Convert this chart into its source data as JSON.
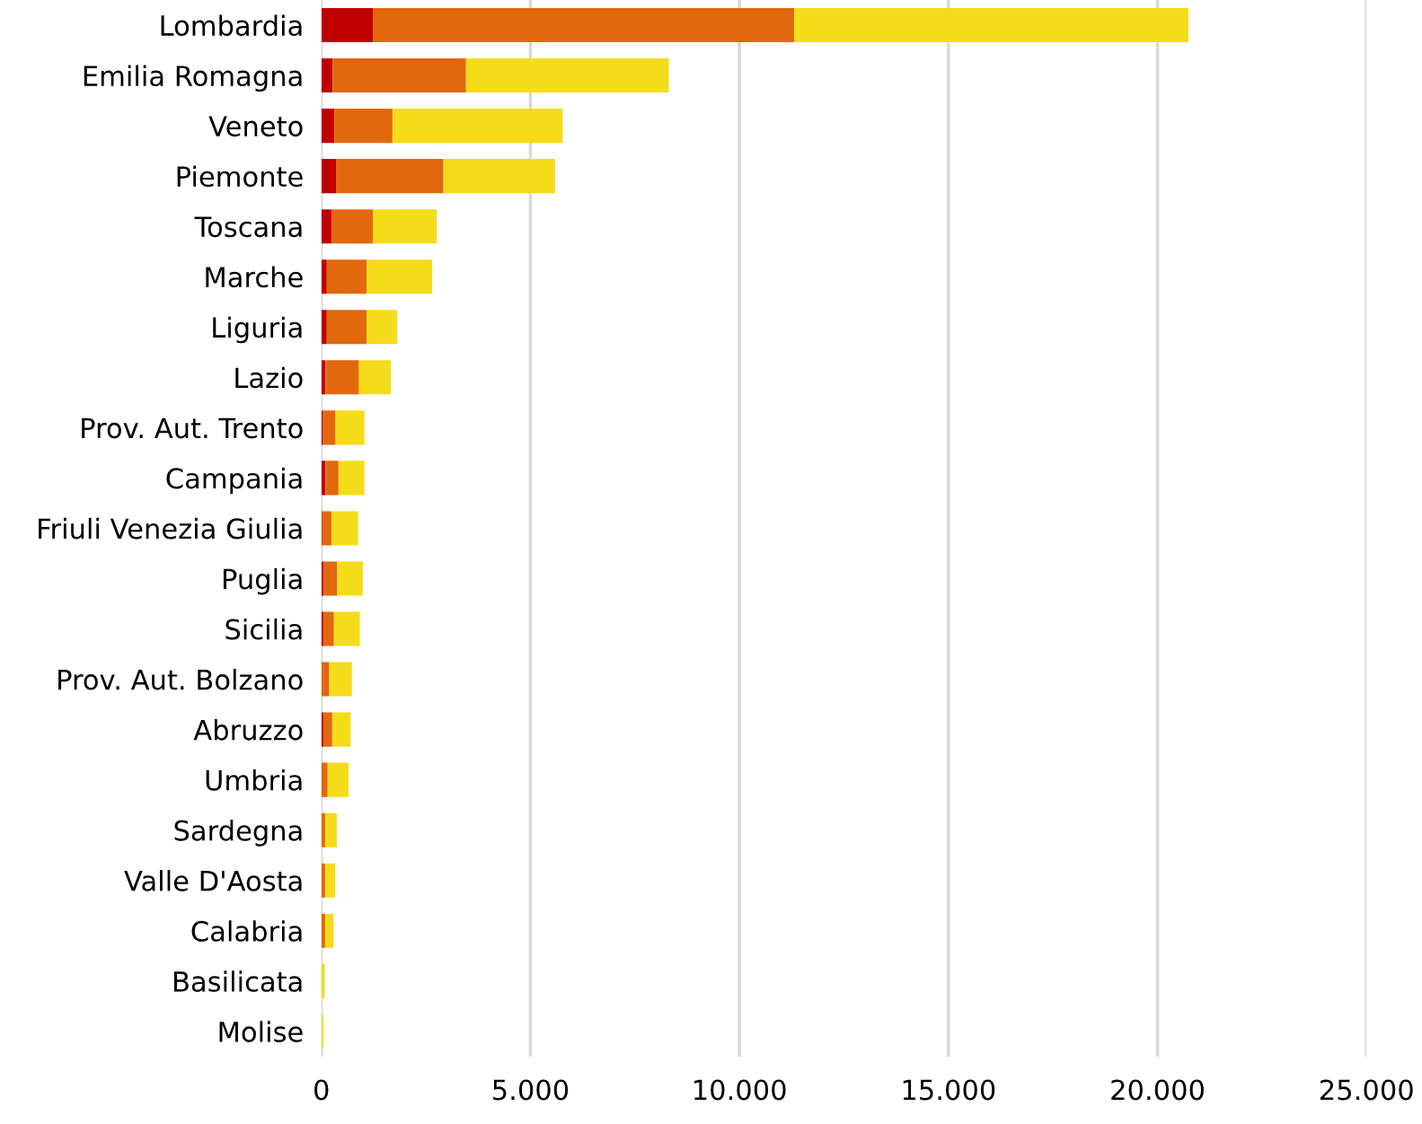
{
  "chart_data": {
    "type": "bar",
    "orientation": "horizontal",
    "stacked": true,
    "categories": [
      "Lombardia",
      "Emilia Romagna",
      "Veneto",
      "Piemonte",
      "Toscana",
      "Marche",
      "Liguria",
      "Lazio",
      "Prov. Aut. Trento",
      "Campania",
      "Friuli Venezia Giulia",
      "Puglia",
      "Sicilia",
      "Prov. Aut. Bolzano",
      "Abruzzo",
      "Umbria",
      "Sardegna",
      "Valle D'Aosta",
      "Calabria",
      "Basilicata",
      "Molise"
    ],
    "series": [
      {
        "color": "#c00000",
        "values": [
          1230,
          270,
          310,
          350,
          240,
          130,
          130,
          100,
          40,
          100,
          20,
          60,
          50,
          0,
          50,
          0,
          0,
          0,
          0,
          0,
          0
        ]
      },
      {
        "color": "#e1680c",
        "values": [
          10080,
          3190,
          1390,
          2570,
          990,
          950,
          950,
          800,
          300,
          310,
          220,
          320,
          250,
          190,
          210,
          150,
          90,
          90,
          90,
          0,
          0
        ]
      },
      {
        "color": "#f4dc1a",
        "values": [
          9430,
          4850,
          4070,
          2670,
          1530,
          1570,
          730,
          760,
          690,
          620,
          640,
          610,
          620,
          540,
          440,
          500,
          280,
          240,
          200,
          80,
          50
        ]
      }
    ],
    "xlim": [
      0,
      25000
    ],
    "xticks": [
      0,
      {
        "value": 5000,
        "label": "5.000"
      },
      {
        "value": 10000,
        "label": "10.000"
      },
      {
        "value": 15000,
        "label": "15.000"
      },
      {
        "value": 20000,
        "label": "20.000"
      },
      {
        "value": 25000,
        "label": "25.000"
      }
    ],
    "grid": "x"
  }
}
